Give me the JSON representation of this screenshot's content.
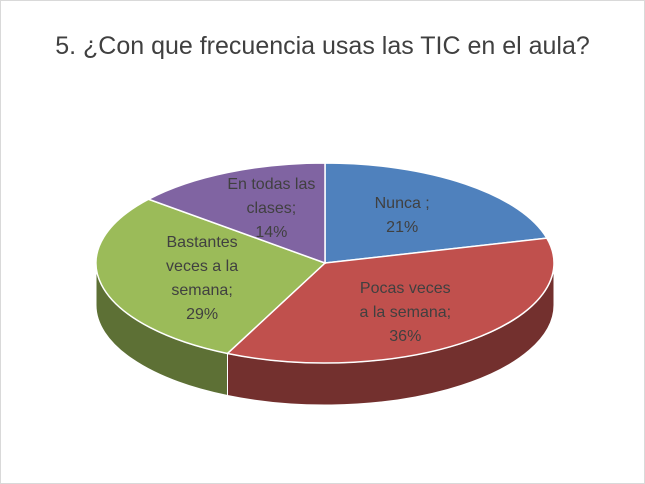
{
  "chart_data": {
    "type": "pie3d",
    "title": "5. ¿Con que frecuencia usas las TIC en el aula?",
    "categories": [
      "Nunca ;",
      "Pocas veces a la semana;",
      "Bastantes veces a la semana;",
      "En todas las clases;"
    ],
    "values": [
      21,
      36,
      29,
      14
    ],
    "value_labels": [
      "21%",
      "36%",
      "29%",
      "14%"
    ],
    "colors": [
      "#4f81bd",
      "#c0504d",
      "#9bbb59",
      "#8064a2"
    ]
  }
}
